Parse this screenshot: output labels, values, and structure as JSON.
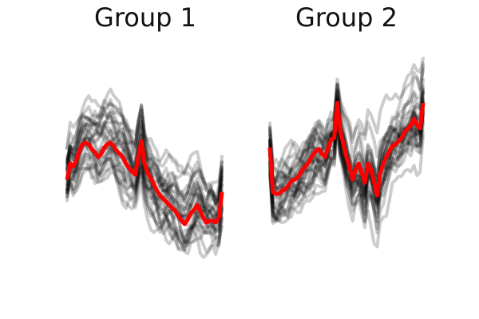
{
  "chart_data": [
    {
      "type": "line",
      "title": "Group 1",
      "axes_visible": false,
      "n_background_series": 30,
      "background_color": "#000000",
      "mean_color": "#ff0000",
      "x": [
        0,
        1,
        2,
        3,
        4,
        5,
        6,
        7,
        8,
        9,
        10,
        11,
        12,
        13,
        14,
        15,
        16,
        17,
        18,
        19,
        20,
        21,
        22,
        23,
        24,
        25,
        26,
        27,
        28,
        29,
        30,
        31,
        32,
        33,
        34,
        35,
        36,
        37,
        38,
        39,
        40,
        41,
        42,
        43,
        44,
        45,
        46,
        47,
        48,
        49,
        50
      ],
      "ylim": [
        -3.5,
        3.5
      ],
      "series": [
        {
          "role": "mean",
          "values": [
            -0.5,
            0.0,
            -0.1,
            0.1,
            0.4,
            0.6,
            0.65,
            0.6,
            0.45,
            0.35,
            0.2,
            0.3,
            0.5,
            0.6,
            0.65,
            0.55,
            0.4,
            0.3,
            0.2,
            0.0,
            -0.15,
            -0.25,
            -0.35,
            0.2,
            0.7,
            0.0,
            -0.3,
            -0.45,
            -0.65,
            -0.85,
            -1.0,
            -1.1,
            -1.2,
            -1.3,
            -1.4,
            -1.5,
            -1.65,
            -1.8,
            -1.9,
            -1.75,
            -1.55,
            -1.45,
            -1.3,
            -1.5,
            -1.7,
            -1.85,
            -1.8,
            -1.8,
            -1.85,
            -1.7,
            -0.9
          ]
        }
      ]
    },
    {
      "type": "line",
      "title": "Group 2",
      "axes_visible": false,
      "n_background_series": 30,
      "background_color": "#000000",
      "mean_color": "#ff0000",
      "x": [
        0,
        1,
        2,
        3,
        4,
        5,
        6,
        7,
        8,
        9,
        10,
        11,
        12,
        13,
        14,
        15,
        16,
        17,
        18,
        19,
        20,
        21,
        22,
        23,
        24,
        25,
        26,
        27,
        28,
        29,
        30,
        31,
        32,
        33,
        34,
        35,
        36,
        37,
        38,
        39,
        40,
        41,
        42,
        43,
        44,
        45,
        46,
        47,
        48,
        49,
        50
      ],
      "ylim": [
        -3.5,
        3.5
      ],
      "series": [
        {
          "role": "mean",
          "values": [
            0.5,
            -0.9,
            -0.95,
            -0.95,
            -0.85,
            -0.8,
            -0.7,
            -0.55,
            -0.5,
            -0.45,
            -0.3,
            -0.15,
            -0.05,
            0.1,
            0.25,
            0.4,
            0.45,
            0.3,
            0.2,
            0.5,
            0.75,
            0.8,
            1.9,
            1.0,
            0.6,
            0.2,
            -0.1,
            -0.5,
            -0.2,
            0.0,
            -0.3,
            -0.6,
            0.0,
            -0.2,
            -0.6,
            -1.0,
            -0.3,
            0.0,
            0.2,
            0.4,
            0.55,
            0.6,
            0.7,
            0.8,
            1.0,
            1.1,
            1.2,
            1.4,
            1.2,
            1.1,
            1.9
          ]
        }
      ]
    }
  ]
}
